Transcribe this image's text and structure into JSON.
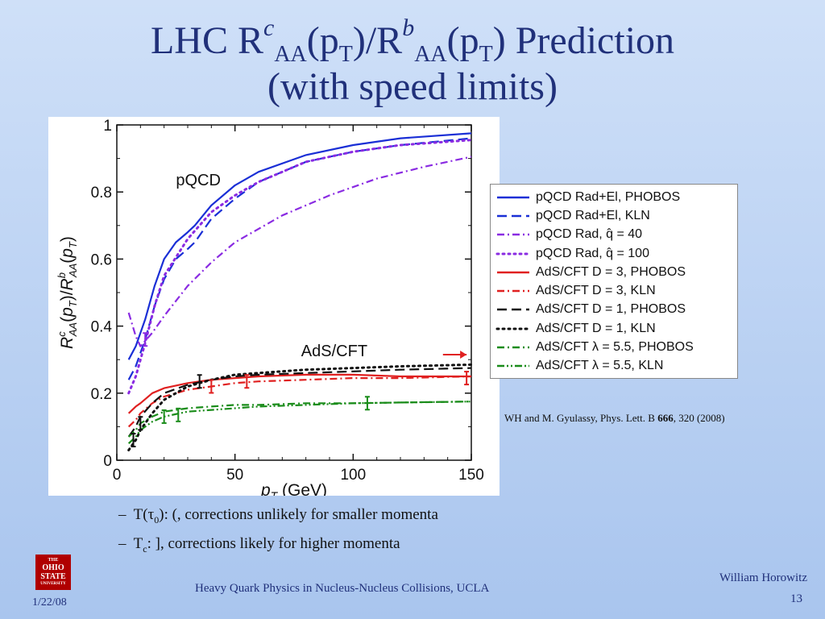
{
  "slide": {
    "title_line1": {
      "pre": "LHC R",
      "sup1": "c",
      "sub1": "AA",
      "mid": "(p",
      "sub2": "T",
      "mid2": ")/R",
      "sup2": "b",
      "sub3": "AA",
      "mid3": "(p",
      "sub4": "T",
      "post": ") Prediction"
    },
    "title_line2": "(with speed limits)",
    "citation": {
      "pre": "WH and M. Gyulassy, Phys. Lett.  B ",
      "vol": "666",
      "post": ", 320 (2008)"
    },
    "bullets": [
      {
        "dash": "–",
        "a": "T(",
        "tau": "τ",
        "sub": "0",
        "b": "): (, corrections unlikely for smaller momenta"
      },
      {
        "dash": "–",
        "a": "T",
        "sub": "c",
        "b": ": ], corrections likely for higher momenta"
      }
    ],
    "logo": {
      "line1": "THE",
      "line2": "OHIO",
      "line3": "STATE",
      "line4": "UNIVERSITY"
    },
    "footer_center": "Heavy Quark Physics in Nucleus-Nucleus Collisions, UCLA",
    "footer_date": "1/22/08",
    "footer_author": "William Horowitz",
    "page_number": "13"
  },
  "chart_data": {
    "type": "line",
    "xlabel": "p_T (GeV)",
    "ylabel": "R^c_AA(p_T)/R^b_AA(p_T)",
    "xlim": [
      0,
      150
    ],
    "ylim": [
      0,
      1
    ],
    "xticks": [
      0,
      50,
      100,
      150
    ],
    "yticks": [
      0,
      0.2,
      0.4,
      0.6,
      0.8,
      1
    ],
    "xtick_labels": [
      "0",
      "50",
      "100",
      "150"
    ],
    "ytick_labels": [
      "0",
      "0.2",
      "0.4",
      "0.6",
      "0.8",
      "1"
    ],
    "annotations": [
      {
        "text": "pQCD",
        "x": 25,
        "y": 0.82
      },
      {
        "text": "AdS/CFT",
        "x": 78,
        "y": 0.31
      }
    ],
    "series": [
      {
        "name": "pQCD Rad+El, PHOBOS",
        "color": "#1a2fd6",
        "dash": "solid",
        "x": [
          5,
          8,
          12,
          16,
          20,
          25,
          30,
          33,
          40,
          50,
          60,
          80,
          100,
          120,
          150
        ],
        "y": [
          0.3,
          0.34,
          0.42,
          0.52,
          0.6,
          0.65,
          0.68,
          0.7,
          0.76,
          0.82,
          0.86,
          0.91,
          0.94,
          0.96,
          0.975
        ]
      },
      {
        "name": "pQCD Rad+El, KLN",
        "color": "#1a2fd6",
        "dash": "longdash",
        "x": [
          5,
          8,
          12,
          16,
          20,
          25,
          30,
          33,
          40,
          50,
          60,
          80,
          100,
          120,
          150
        ],
        "y": [
          0.24,
          0.28,
          0.36,
          0.46,
          0.54,
          0.6,
          0.63,
          0.65,
          0.72,
          0.78,
          0.83,
          0.89,
          0.92,
          0.94,
          0.96
        ]
      },
      {
        "name": "pQCD Rad, q̂ = 40",
        "color": "#8a2be2",
        "dash": "dashdot",
        "x": [
          5,
          8,
          10,
          15,
          20,
          30,
          40,
          50,
          70,
          90,
          110,
          130,
          150
        ],
        "y": [
          0.44,
          0.37,
          0.34,
          0.38,
          0.43,
          0.52,
          0.59,
          0.65,
          0.73,
          0.79,
          0.84,
          0.875,
          0.905
        ]
      },
      {
        "name": "pQCD Rad, q̂ = 100",
        "color": "#8a2be2",
        "dash": "dotted",
        "x": [
          5,
          8,
          12,
          16,
          20,
          30,
          40,
          50,
          60,
          80,
          100,
          120,
          150
        ],
        "y": [
          0.2,
          0.25,
          0.35,
          0.46,
          0.55,
          0.66,
          0.74,
          0.79,
          0.83,
          0.89,
          0.92,
          0.94,
          0.955
        ]
      },
      {
        "name": "AdS/CFT D = 3, PHOBOS",
        "color": "#e02020",
        "dash": "solid",
        "x": [
          5,
          8,
          10,
          15,
          20,
          30,
          40,
          50,
          60,
          80,
          100,
          120,
          150
        ],
        "y": [
          0.14,
          0.16,
          0.17,
          0.2,
          0.215,
          0.23,
          0.24,
          0.245,
          0.25,
          0.255,
          0.255,
          0.25,
          0.25
        ]
      },
      {
        "name": "AdS/CFT D = 3, KLN",
        "color": "#e02020",
        "dash": "dashdot",
        "x": [
          5,
          8,
          10,
          15,
          20,
          30,
          40,
          50,
          60,
          80,
          100,
          120,
          150
        ],
        "y": [
          0.1,
          0.12,
          0.14,
          0.17,
          0.19,
          0.21,
          0.22,
          0.23,
          0.235,
          0.24,
          0.245,
          0.245,
          0.25
        ]
      },
      {
        "name": "AdS/CFT D = 1, PHOBOS",
        "color": "#111111",
        "dash": "longdash",
        "x": [
          5,
          8,
          10,
          15,
          20,
          30,
          40,
          50,
          60,
          80,
          100,
          120,
          150
        ],
        "y": [
          0.07,
          0.1,
          0.13,
          0.17,
          0.2,
          0.225,
          0.24,
          0.25,
          0.255,
          0.26,
          0.265,
          0.27,
          0.275
        ]
      },
      {
        "name": "AdS/CFT D = 1, KLN",
        "color": "#111111",
        "dash": "dotted",
        "x": [
          5,
          8,
          10,
          15,
          20,
          30,
          40,
          50,
          60,
          80,
          100,
          120,
          150
        ],
        "y": [
          0.03,
          0.06,
          0.09,
          0.14,
          0.18,
          0.22,
          0.24,
          0.255,
          0.26,
          0.27,
          0.275,
          0.28,
          0.285
        ]
      },
      {
        "name": "AdS/CFT λ = 5.5, PHOBOS",
        "color": "#1a8c1a",
        "dash": "dashdot",
        "x": [
          5,
          8,
          10,
          15,
          20,
          30,
          40,
          50,
          60,
          80,
          100,
          120,
          150
        ],
        "y": [
          0.07,
          0.09,
          0.11,
          0.13,
          0.145,
          0.155,
          0.16,
          0.165,
          0.165,
          0.17,
          0.17,
          0.172,
          0.175
        ]
      },
      {
        "name": "AdS/CFT λ = 5.5, KLN",
        "color": "#1a8c1a",
        "dash": "dashdotdot",
        "x": [
          5,
          8,
          10,
          15,
          20,
          30,
          40,
          50,
          60,
          80,
          100,
          120,
          150
        ],
        "y": [
          0.05,
          0.07,
          0.09,
          0.115,
          0.13,
          0.145,
          0.15,
          0.155,
          0.16,
          0.165,
          0.17,
          0.172,
          0.175
        ]
      }
    ],
    "speed_limit_markers": [
      {
        "color": "#e02020",
        "x": 148,
        "y": 0.245
      },
      {
        "color": "#e02020",
        "x": 55,
        "y": 0.235
      },
      {
        "color": "#e02020",
        "x": 40,
        "y": 0.22
      },
      {
        "color": "#111111",
        "x": 35,
        "y": 0.235
      },
      {
        "color": "#111111",
        "x": 10,
        "y": 0.11
      },
      {
        "color": "#111111",
        "x": 7,
        "y": 0.06
      },
      {
        "color": "#1a8c1a",
        "x": 106,
        "y": 0.17
      },
      {
        "color": "#1a8c1a",
        "x": 26,
        "y": 0.135
      },
      {
        "color": "#1a8c1a",
        "x": 20,
        "y": 0.13
      },
      {
        "color": "#8a2be2",
        "x": 12,
        "y": 0.36
      }
    ],
    "arrow": {
      "color": "#e02020",
      "x_from": 138,
      "x_to": 148,
      "y": 0.315
    }
  }
}
